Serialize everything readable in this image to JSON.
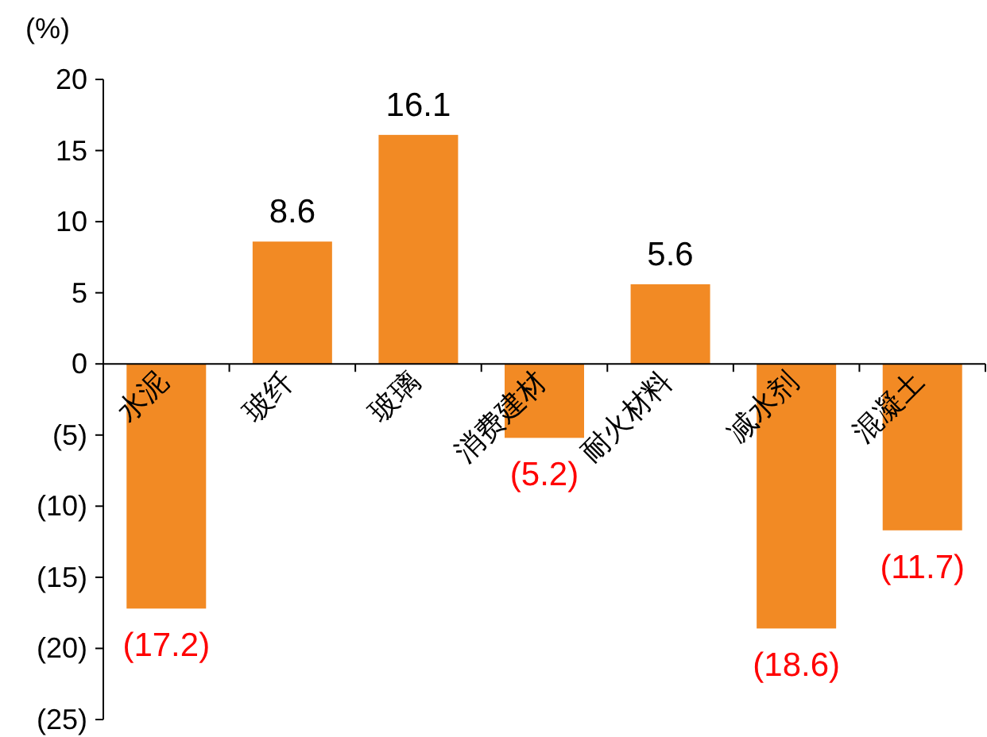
{
  "chart_data": {
    "type": "bar",
    "ylabel": "(%)",
    "categories": [
      "水泥",
      "玻纤",
      "玻璃",
      "消费建材",
      "耐火材料",
      "减水剂",
      "混凝土"
    ],
    "values": [
      -17.2,
      8.6,
      16.1,
      -5.2,
      5.6,
      -18.6,
      -11.7
    ],
    "value_labels": [
      "(17.2)",
      "8.6",
      "16.1",
      "(5.2)",
      "5.6",
      "(18.6)",
      "(11.7)"
    ],
    "color": "#f28a24",
    "ylim": [
      -25,
      20
    ],
    "yticks": [
      {
        "value": -25,
        "label": "(25)"
      },
      {
        "value": -20,
        "label": "(20)"
      },
      {
        "value": -15,
        "label": "(15)"
      },
      {
        "value": -10,
        "label": "(10)"
      },
      {
        "value": -5,
        "label": "(5)"
      },
      0,
      5,
      10,
      15,
      20
    ],
    "grid": false
  }
}
